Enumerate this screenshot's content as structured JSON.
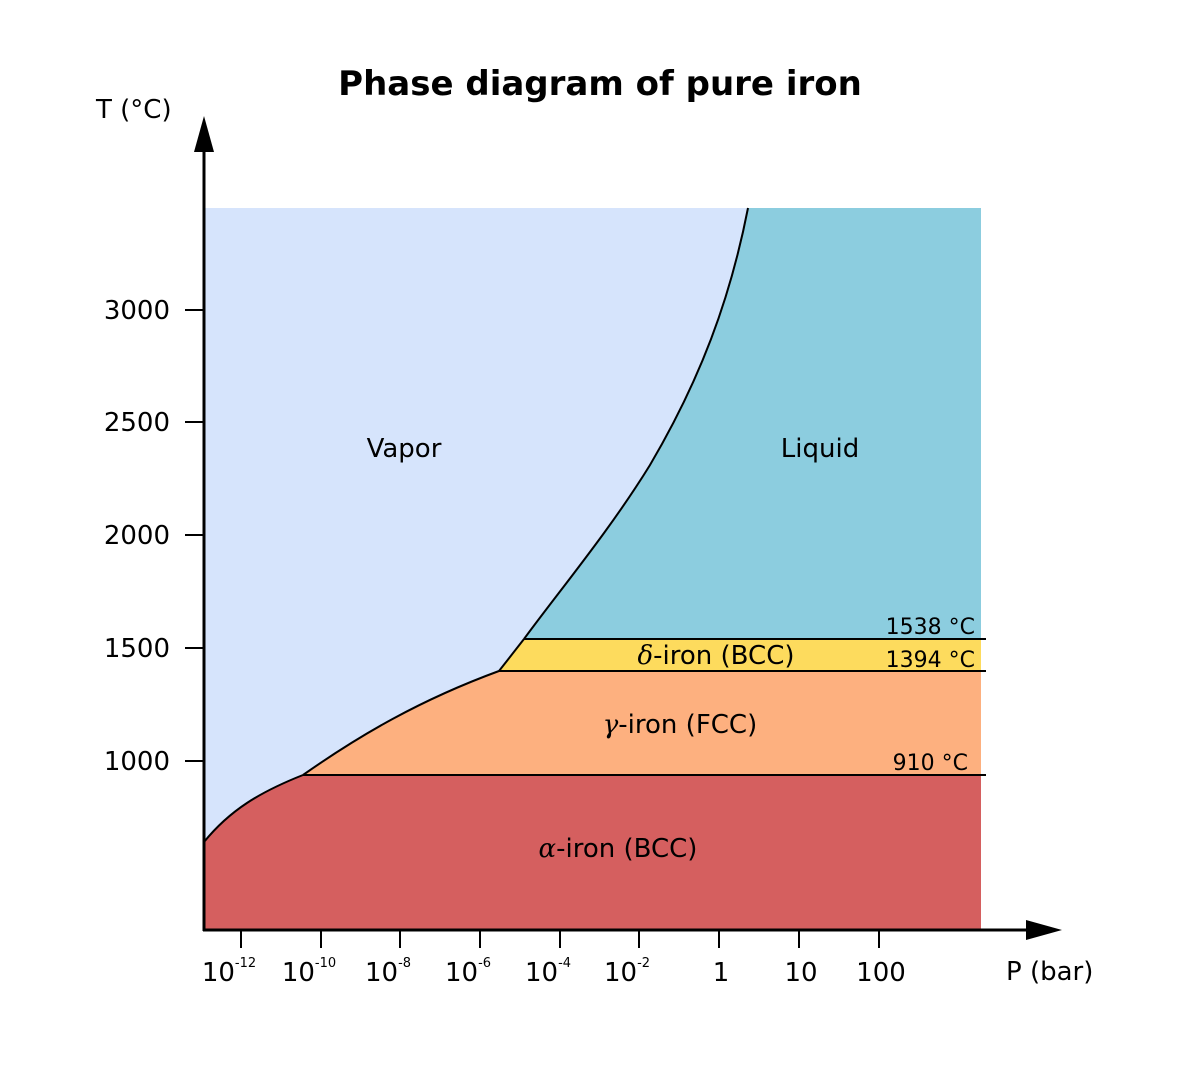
{
  "title": "Phase diagram of pure iron",
  "axes": {
    "y_title": "T (°C)",
    "x_title": "P (bar)",
    "y_ticks": [
      "3000",
      "2500",
      "2000",
      "1500",
      "1000"
    ],
    "x_ticks": [
      {
        "base": "10",
        "exp": "-12"
      },
      {
        "base": "10",
        "exp": "-10"
      },
      {
        "base": "10",
        "exp": "-8"
      },
      {
        "base": "10",
        "exp": "-6"
      },
      {
        "base": "10",
        "exp": "-4"
      },
      {
        "base": "10",
        "exp": "-2"
      },
      {
        "base": "1",
        "exp": ""
      },
      {
        "base": "10",
        "exp": ""
      },
      {
        "base": "100",
        "exp": ""
      }
    ]
  },
  "regions": {
    "vapor": "Vapor",
    "liquid": "Liquid",
    "delta": {
      "symbol": "δ",
      "text": "-iron (BCC)"
    },
    "gamma": {
      "symbol": "γ",
      "text": "-iron (FCC)"
    },
    "alpha": {
      "symbol": "α",
      "text": "-iron (BCC)"
    }
  },
  "boundaries": {
    "t1538": "1538 °C",
    "t1394": "1394 °C",
    "t910": "910 °C"
  },
  "colors": {
    "vapor": "#d6e4fc",
    "liquid": "#8ccddf",
    "delta": "#fddb5d",
    "gamma": "#fdb07f",
    "alpha": "#d55f5f",
    "line": "#000000"
  }
}
